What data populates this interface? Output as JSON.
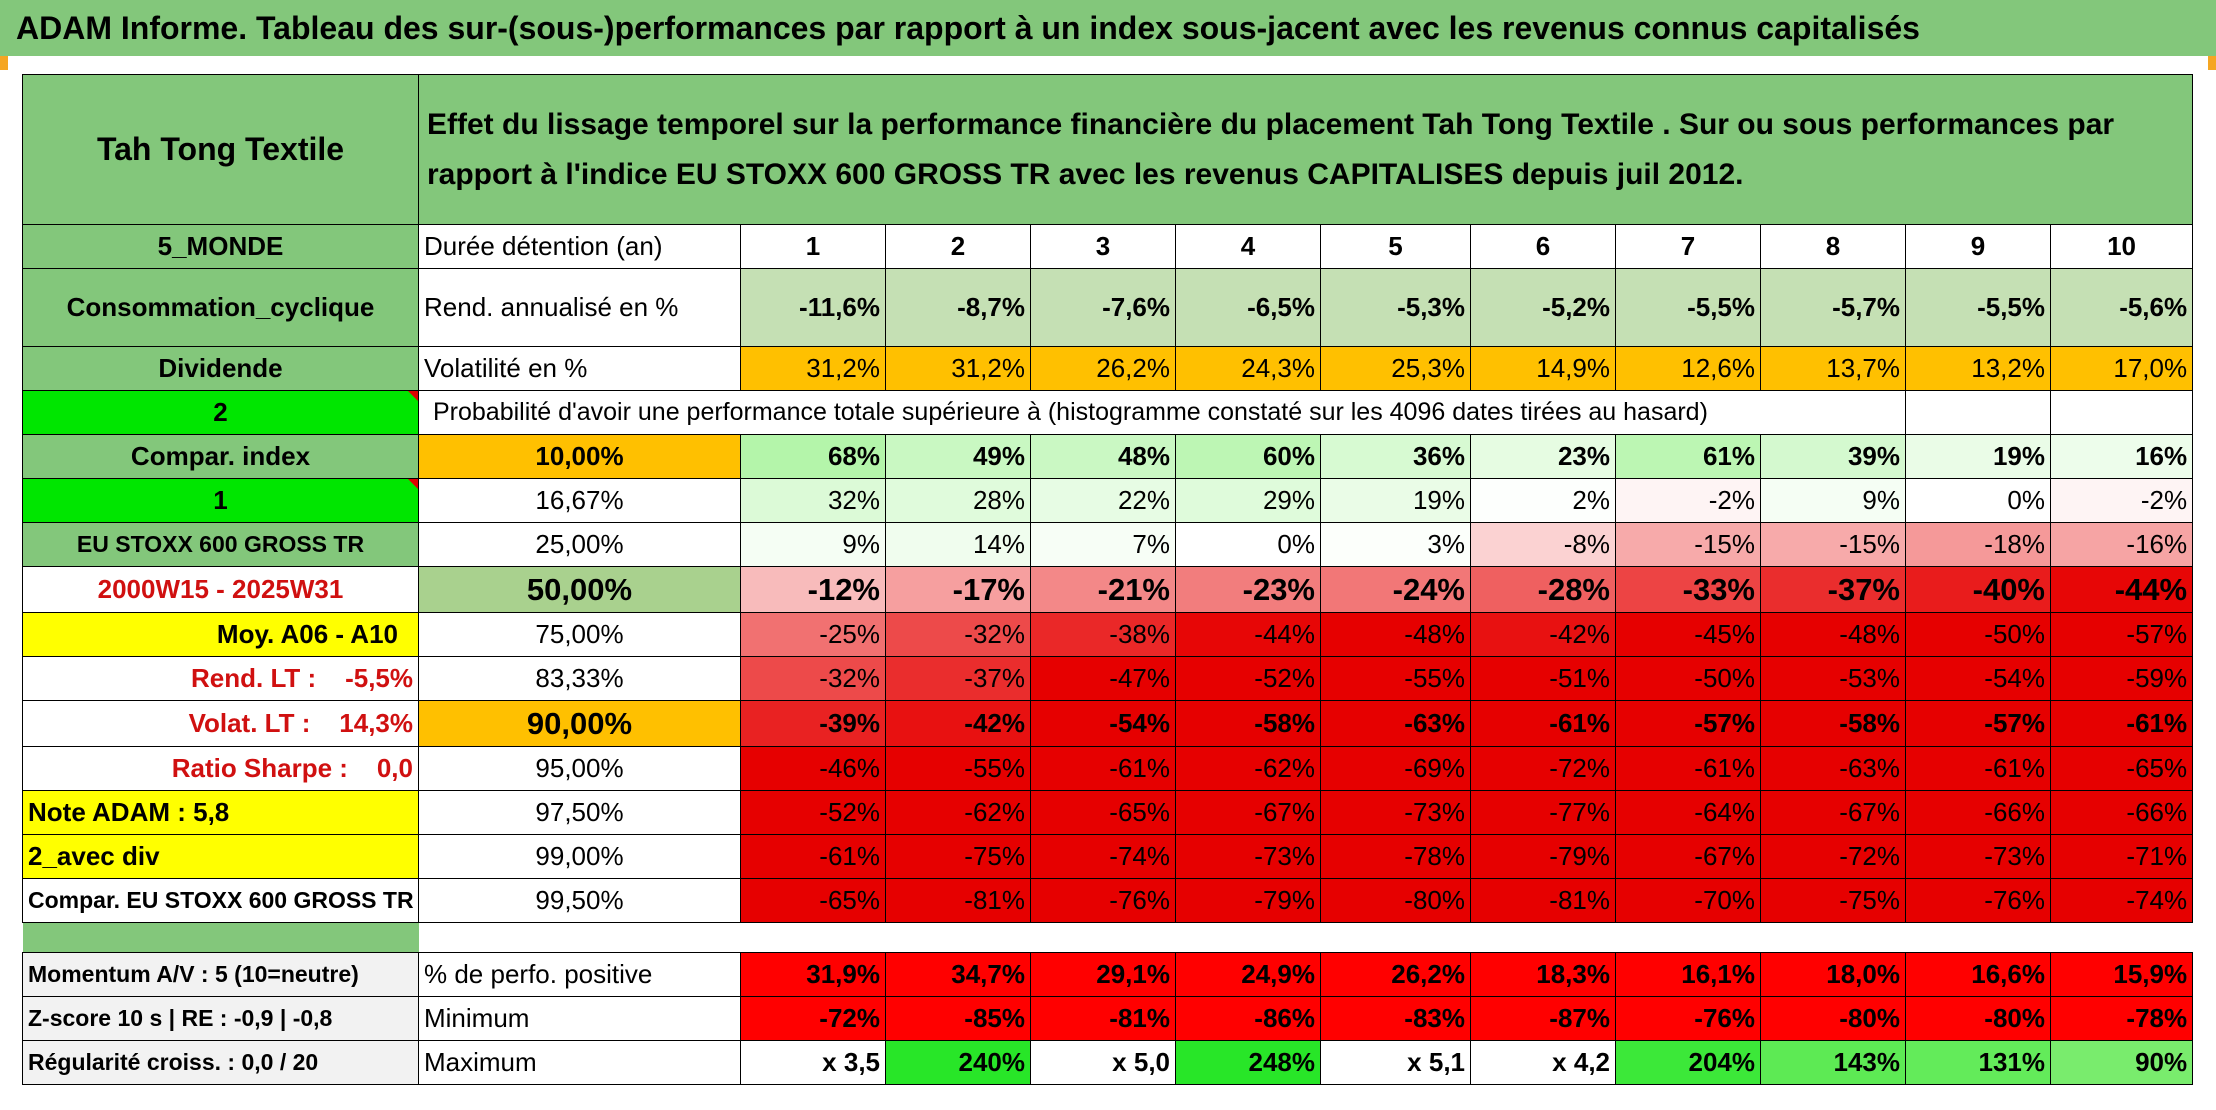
{
  "banner": "ADAM Informe. Tableau des sur-(sous-)performances par rapport à un index sous-jacent avec les revenus connus capitalisés",
  "title": {
    "name": "Tah Tong Textile",
    "description": "Effet du lissage temporel sur la performance financière du placement Tah Tong Textile . Sur ou sous performances par rapport à l'indice EU STOXX 600 GROSS TR avec les revenus CAPITALISES depuis juil 2012."
  },
  "left": {
    "region": "5_MONDE",
    "sector": "Consommation_cyclique",
    "dividend": "Dividende",
    "code2": "2",
    "compar_label": "Compar. index",
    "code1": "1",
    "index_name": "EU STOXX 600 GROSS TR",
    "period": "2000W15 - 2025W31",
    "moy": "Moy. A06 - A10",
    "rend_lt": "Rend. LT :    -5,5%",
    "volat_lt": "Volat. LT :    14,3%",
    "sharpe": "Ratio Sharpe :    0,0",
    "note": "Note ADAM : 5,8",
    "avec_div": "2_avec div",
    "compar_full": "Compar. EU STOXX 600 GROSS TR",
    "momentum": "Momentum A/V : 5 (10=neutre)",
    "zscore": "Z-score 10 s | RE : -0,9 | -0,8",
    "regularite": "Régularité croiss. : 0,0 / 20"
  },
  "row_labels": {
    "duree": "Durée détention (an)",
    "rend": "Rend. annualisé en %",
    "vol": "Volatilité en %",
    "proba": "Probabilité d'avoir une performance totale supérieure à (histogramme constaté sur les 4096 dates tirées au hasard)",
    "perfo_pos": "% de perfo. positive",
    "minimum": "Minimum",
    "maximum": "Maximum"
  },
  "years": [
    "1",
    "2",
    "3",
    "4",
    "5",
    "6",
    "7",
    "8",
    "9",
    "10"
  ],
  "rend": [
    "-11,6%",
    "-8,7%",
    "-7,6%",
    "-6,5%",
    "-5,3%",
    "-5,2%",
    "-5,5%",
    "-5,7%",
    "-5,5%",
    "-5,6%"
  ],
  "vol": [
    "31,2%",
    "31,2%",
    "26,2%",
    "24,3%",
    "25,3%",
    "14,9%",
    "12,6%",
    "13,7%",
    "13,2%",
    "17,0%"
  ],
  "prob_rows": [
    {
      "p": "10,00%",
      "v": [
        "68%",
        "49%",
        "48%",
        "60%",
        "36%",
        "23%",
        "61%",
        "39%",
        "19%",
        "16%"
      ]
    },
    {
      "p": "16,67%",
      "v": [
        "32%",
        "28%",
        "22%",
        "29%",
        "19%",
        "2%",
        "-2%",
        "9%",
        "0%",
        "-2%"
      ]
    },
    {
      "p": "25,00%",
      "v": [
        "9%",
        "14%",
        "7%",
        "0%",
        "3%",
        "-8%",
        "-15%",
        "-15%",
        "-18%",
        "-16%"
      ]
    },
    {
      "p": "50,00%",
      "v": [
        "-12%",
        "-17%",
        "-21%",
        "-23%",
        "-24%",
        "-28%",
        "-33%",
        "-37%",
        "-40%",
        "-44%"
      ]
    },
    {
      "p": "75,00%",
      "v": [
        "-25%",
        "-32%",
        "-38%",
        "-44%",
        "-48%",
        "-42%",
        "-45%",
        "-48%",
        "-50%",
        "-57%"
      ]
    },
    {
      "p": "83,33%",
      "v": [
        "-32%",
        "-37%",
        "-47%",
        "-52%",
        "-55%",
        "-51%",
        "-50%",
        "-53%",
        "-54%",
        "-59%"
      ]
    },
    {
      "p": "90,00%",
      "v": [
        "-39%",
        "-42%",
        "-54%",
        "-58%",
        "-63%",
        "-61%",
        "-57%",
        "-58%",
        "-57%",
        "-61%"
      ]
    },
    {
      "p": "95,00%",
      "v": [
        "-46%",
        "-55%",
        "-61%",
        "-62%",
        "-69%",
        "-72%",
        "-61%",
        "-63%",
        "-61%",
        "-65%"
      ]
    },
    {
      "p": "97,50%",
      "v": [
        "-52%",
        "-62%",
        "-65%",
        "-67%",
        "-73%",
        "-77%",
        "-64%",
        "-67%",
        "-66%",
        "-66%"
      ]
    },
    {
      "p": "99,00%",
      "v": [
        "-61%",
        "-75%",
        "-74%",
        "-73%",
        "-78%",
        "-79%",
        "-67%",
        "-72%",
        "-73%",
        "-71%"
      ]
    },
    {
      "p": "99,50%",
      "v": [
        "-65%",
        "-81%",
        "-76%",
        "-79%",
        "-80%",
        "-81%",
        "-70%",
        "-75%",
        "-76%",
        "-74%"
      ]
    }
  ],
  "perfo_pos": [
    "31,9%",
    "34,7%",
    "29,1%",
    "24,9%",
    "26,2%",
    "18,3%",
    "16,1%",
    "18,0%",
    "16,6%",
    "15,9%"
  ],
  "minimum": [
    "-72%",
    "-85%",
    "-81%",
    "-86%",
    "-83%",
    "-87%",
    "-76%",
    "-80%",
    "-80%",
    "-78%"
  ],
  "maximum": [
    "x 3,5",
    "240%",
    "x 5,0",
    "248%",
    "x 5,1",
    "x 4,2",
    "204%",
    "143%",
    "131%",
    "90%"
  ],
  "colors": {
    "header_green": "#83c77b",
    "rend_green": "#c5e0b4",
    "volatility_orange": "#ffc000",
    "lime": "#00e600",
    "highlight_yellow": "#ffff00",
    "red": "#ff0000"
  }
}
